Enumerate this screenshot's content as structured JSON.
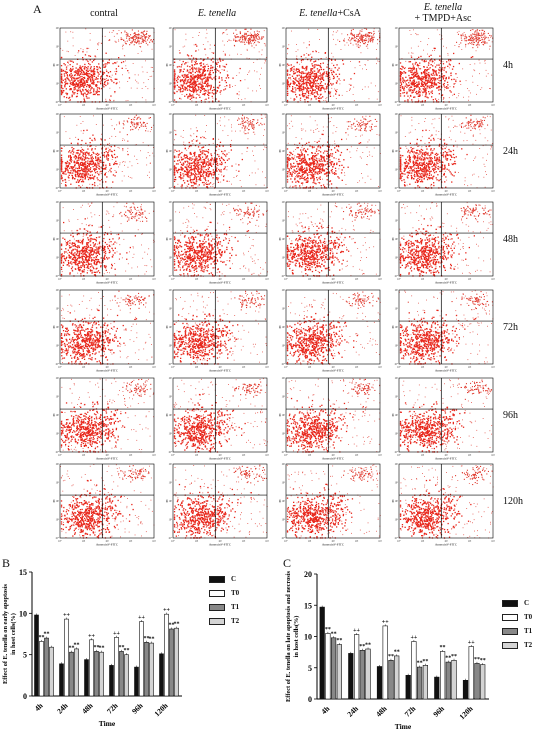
{
  "panel_a": {
    "letter": "A",
    "columns": [
      {
        "label": "contral",
        "italic": ""
      },
      {
        "label": "",
        "italic": "E. tenella"
      },
      {
        "label": "+CsA",
        "italic": "E. tenella"
      },
      {
        "label": "+ TMPD+Asc",
        "italic": "E. tenella"
      }
    ],
    "rows": [
      "4h",
      "24h",
      "48h",
      "72h",
      "96h",
      "120h"
    ],
    "x_axis_label": "AnnexinV-FITC",
    "y_axis_label": "PI",
    "tick_labels": [
      "10⁰",
      "10¹",
      "10²",
      "10³",
      "10⁴"
    ],
    "colors": {
      "scatter_main": "#e8261b",
      "scatter_sparse": "#e03a2f",
      "gate": "#000000"
    }
  },
  "panel_b": {
    "letter": "B",
    "chart_data": {
      "type": "bar",
      "ylabel": "Effect of E. tenella on early apoptosis in host cells(%)",
      "xlabel": "Time",
      "ylim": [
        0,
        15
      ],
      "yticks": [
        "0",
        "5",
        "10",
        "15"
      ],
      "categories": [
        "4h",
        "24h",
        "48h",
        "72h",
        "96h",
        "120h"
      ],
      "series": [
        {
          "name": "C",
          "color": "#111111",
          "values": [
            9.8,
            3.9,
            4.4,
            3.7,
            3.5,
            5.1
          ]
        },
        {
          "name": "T0",
          "color": "#ffffff",
          "values": [
            6.6,
            9.3,
            6.8,
            7.1,
            9.0,
            9.9
          ]
        },
        {
          "name": "T1",
          "color": "#888888",
          "values": [
            7.0,
            5.3,
            5.4,
            5.4,
            6.5,
            8.1
          ]
        },
        {
          "name": "T2",
          "color": "#d4d4d4",
          "values": [
            5.9,
            5.7,
            5.3,
            5.0,
            6.4,
            8.2
          ]
        }
      ],
      "annotations": {
        "T0": [
          "**",
          "++",
          "++",
          "++",
          "++",
          "++"
        ],
        "T1": [
          "**",
          "**",
          "**",
          "**",
          "**",
          "**"
        ],
        "T2": [
          "",
          "**",
          "**",
          "**",
          "**",
          "**"
        ]
      }
    }
  },
  "panel_c": {
    "letter": "C",
    "chart_data": {
      "type": "bar",
      "ylabel": "Effect of E. tenella on late apoptosis and necrosis in host cells(%)",
      "xlabel": "Time",
      "ylim": [
        0,
        20
      ],
      "yticks": [
        "0",
        "5",
        "10",
        "15",
        "20"
      ],
      "categories": [
        "4h",
        "24h",
        "48h",
        "72h",
        "96h",
        "120h"
      ],
      "series": [
        {
          "name": "C",
          "color": "#111111",
          "values": [
            14.7,
            7.3,
            5.2,
            3.8,
            3.5,
            3.0
          ]
        },
        {
          "name": "T0",
          "color": "#ffffff",
          "values": [
            10.5,
            10.3,
            11.7,
            9.2,
            7.6,
            8.4
          ]
        },
        {
          "name": "T1",
          "color": "#888888",
          "values": [
            9.8,
            7.8,
            6.2,
            5.1,
            5.9,
            5.7
          ]
        },
        {
          "name": "T2",
          "color": "#d4d4d4",
          "values": [
            8.7,
            8.0,
            6.9,
            5.4,
            6.2,
            5.5
          ]
        }
      ],
      "annotations": {
        "T0": [
          "**",
          "++",
          "++",
          "++",
          "**",
          "++"
        ],
        "T1": [
          "**",
          "**",
          "**",
          "**",
          "**",
          "**"
        ],
        "T2": [
          "**",
          "**",
          "**",
          "**",
          "**",
          "**"
        ]
      }
    }
  }
}
